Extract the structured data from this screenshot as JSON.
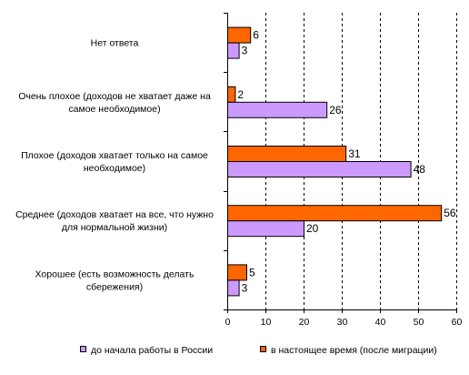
{
  "chart_data": {
    "type": "bar",
    "orientation": "horizontal",
    "categories": [
      [
        "Нет ответа"
      ],
      [
        "Очень плохое (доходов не хватает даже на",
        "самое необходимое)"
      ],
      [
        "Плохое (доходов хватает только на самое",
        "необходимое)"
      ],
      [
        "Среднее (доходов хватает на все, что нужно",
        "для нормальной жизни)"
      ],
      [
        "Хорошее (есть возможность делать",
        "сбережения)"
      ]
    ],
    "series": [
      {
        "name": "в настоящее время (после миграции)",
        "color": "#ff6600",
        "values": [
          6,
          2,
          31,
          56,
          5
        ]
      },
      {
        "name": "до начала работы в России",
        "color": "#cc99ff",
        "values": [
          3,
          26,
          48,
          20,
          3
        ]
      }
    ],
    "xlim": [
      0,
      60
    ],
    "xticks": [
      "0",
      "10",
      "20",
      "30",
      "40",
      "50",
      "60"
    ],
    "grid": "vertical-dashed",
    "legend": {
      "placement": "bottom",
      "items": [
        {
          "name": "до начала работы в России",
          "color": "#cc99ff"
        },
        {
          "name": "в настоящее время (после миграции)",
          "color": "#ff6600"
        }
      ]
    },
    "title": "",
    "xlabel": "",
    "ylabel": ""
  }
}
